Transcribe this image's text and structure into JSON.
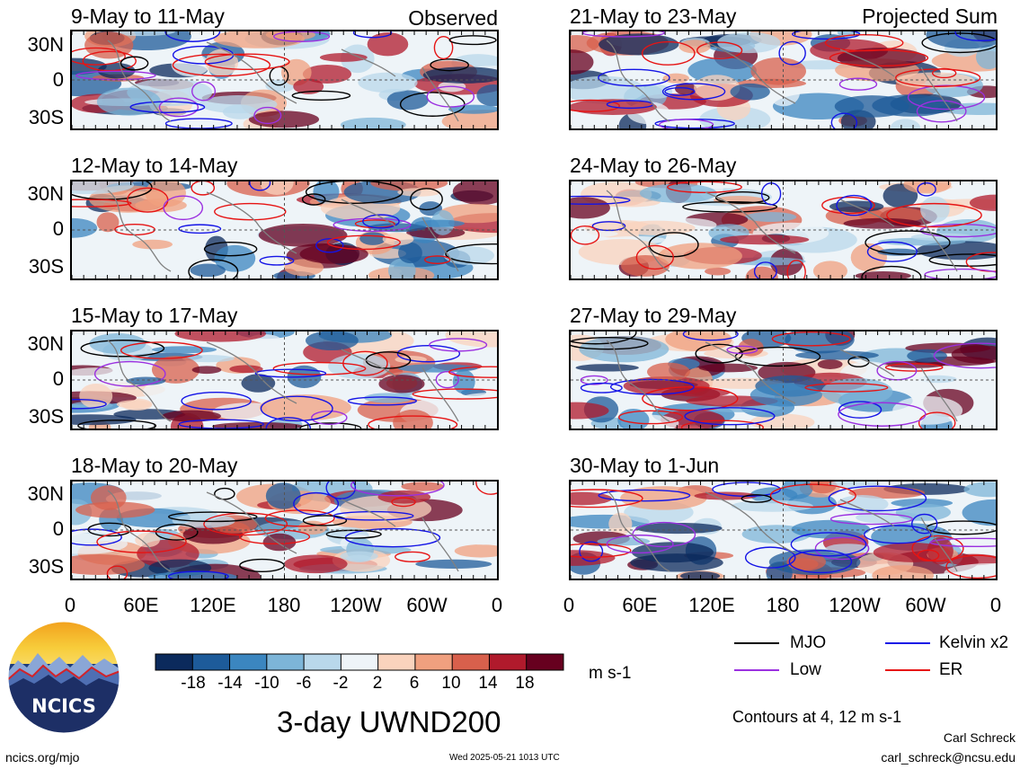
{
  "panels": [
    {
      "title": "9-May to 11-May",
      "tag": "Observed"
    },
    {
      "title": "21-May to 23-May",
      "tag": "Projected Sum"
    },
    {
      "title": "12-May to 14-May",
      "tag": ""
    },
    {
      "title": "24-May to 26-May",
      "tag": ""
    },
    {
      "title": "15-May to 17-May",
      "tag": ""
    },
    {
      "title": "27-May to 29-May",
      "tag": ""
    },
    {
      "title": "18-May to 20-May",
      "tag": ""
    },
    {
      "title": "30-May to 1-Jun",
      "tag": ""
    }
  ],
  "lat_labels": [
    "30N",
    "0",
    "30S"
  ],
  "lon_labels": [
    "0",
    "60E",
    "120E",
    "180",
    "120W",
    "60W",
    "0"
  ],
  "colorbar": {
    "labels": [
      "-18",
      "-14",
      "-10",
      "-6",
      "-2",
      "2",
      "6",
      "10",
      "14",
      "18"
    ],
    "colors": [
      "#0b2a5c",
      "#1d5b9a",
      "#3b86c0",
      "#7db5d8",
      "#b9d8eb",
      "#eef4f8",
      "#fad3bd",
      "#f0a07f",
      "#d8604c",
      "#b01a2c",
      "#67001f"
    ],
    "unit": "m s-1"
  },
  "legend": [
    {
      "name": "MJO",
      "color": "#000000"
    },
    {
      "name": "Kelvin x2",
      "color": "#1414e6"
    },
    {
      "name": "Low",
      "color": "#9b30e0"
    },
    {
      "name": "ER",
      "color": "#e61414"
    }
  ],
  "contour_note": "Contours at 4, 12 m s-1",
  "main_title": "3-day UWND200",
  "logo_text": "NCICS",
  "footer": {
    "url": "ncics.org/mjo",
    "timestamp": "Wed 2025-05-21 1013 UTC",
    "author": "Carl Schreck",
    "email": "carl_schreck@ncsu.edu"
  }
}
